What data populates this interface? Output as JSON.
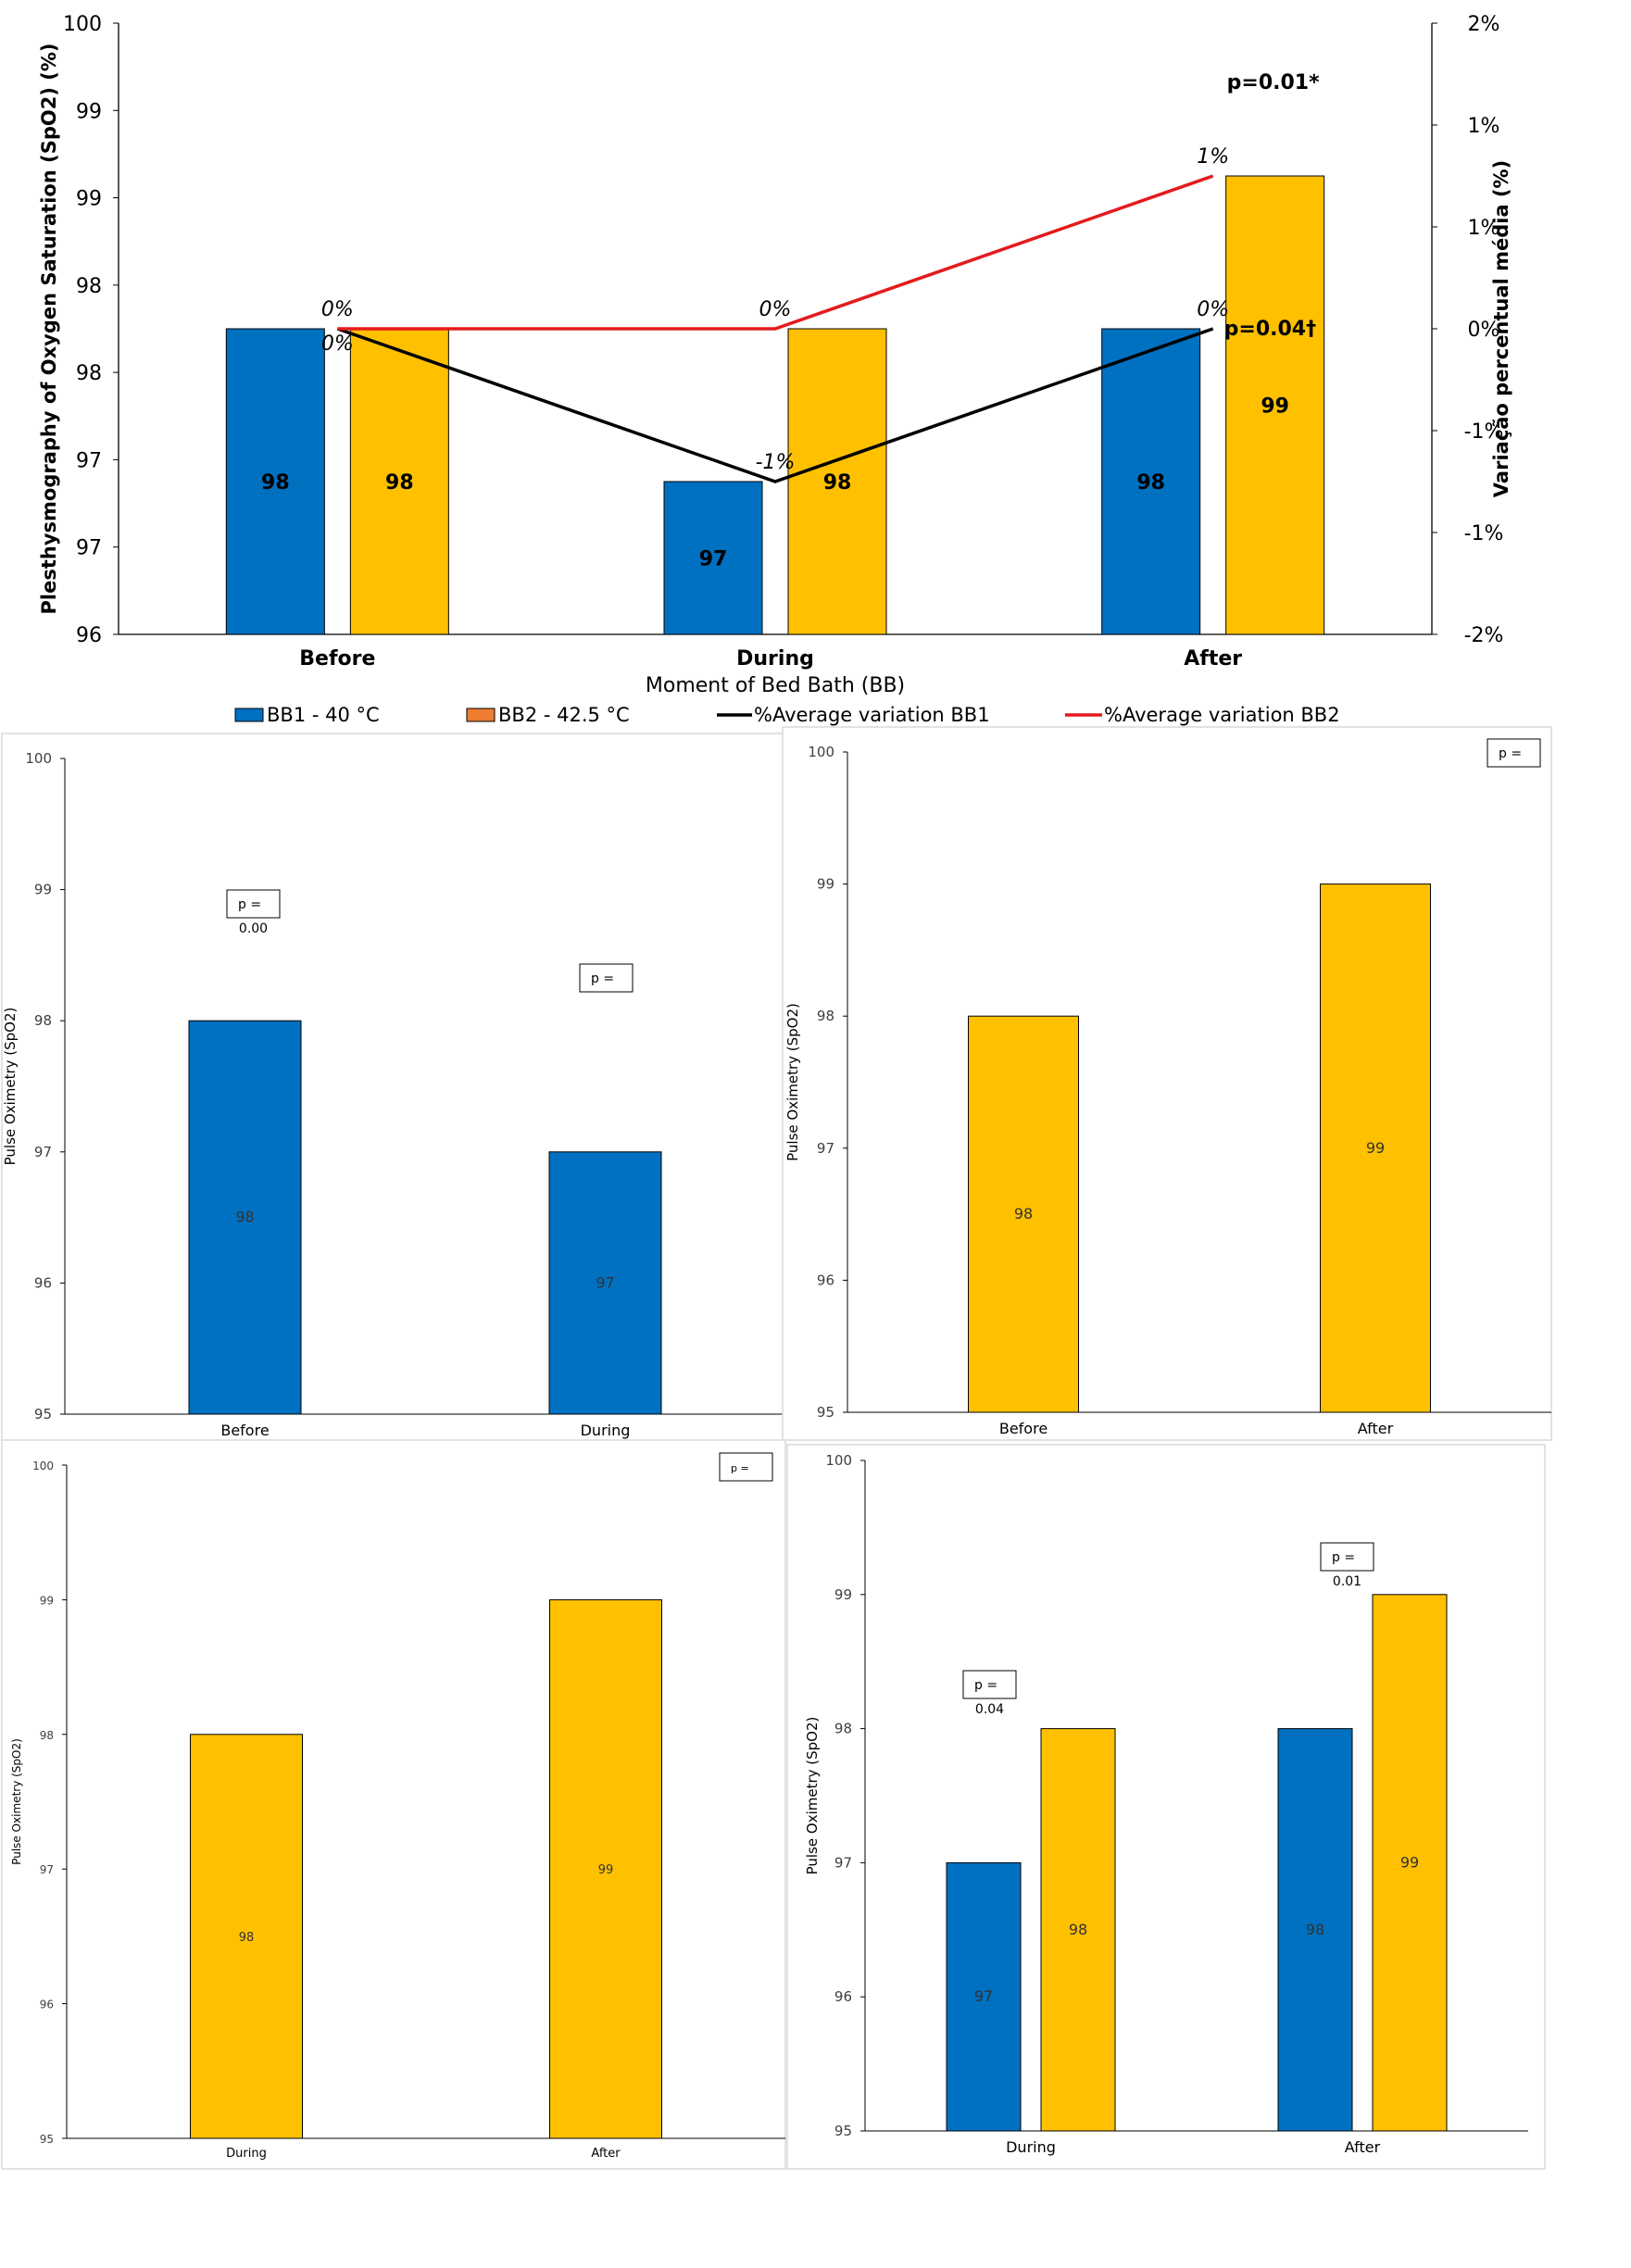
{
  "colors": {
    "bb1": "#0070C0",
    "bb2": "#FFC000",
    "bb2_legend": "#ED7D31",
    "line_bb1": "#000000",
    "line_bb2": "#E41A1C",
    "axis": "#000000",
    "text": "#000000"
  },
  "chart_data": [
    {
      "type": "bar",
      "categories": [
        "Before",
        "During",
        "After"
      ],
      "xlabel": "Moment of Bed Bath (BB)",
      "ylabel": "Plesthysmography of Oxygen Saturation (SpO2) (%)",
      "y2label": "Variação percentual média (%)",
      "ylim": [
        96,
        100
      ],
      "yticks": [
        "96",
        "97",
        "97",
        "98",
        "98",
        "99",
        "99",
        "100"
      ],
      "y2lim": [
        -2,
        2
      ],
      "y2ticks": [
        "-2%",
        "-1%",
        "-1%",
        "0%",
        "1%",
        "1%",
        "2%"
      ],
      "series": [
        {
          "name": "BB1 - 40 °C",
          "kind": "bar",
          "values": [
            98,
            97,
            98
          ],
          "labels": [
            "98",
            "97",
            "98"
          ]
        },
        {
          "name": "BB2 - 42.5 °C",
          "kind": "bar",
          "values": [
            98,
            98,
            99
          ],
          "labels": [
            "98",
            "98",
            "99"
          ]
        },
        {
          "name": "%Average variation BB1",
          "kind": "line",
          "axis": "right",
          "values": [
            0,
            -1,
            0
          ],
          "labels": [
            "0%",
            "-1%",
            "0%"
          ]
        },
        {
          "name": "%Average variation BB2",
          "kind": "line",
          "axis": "right",
          "values": [
            0,
            0,
            1
          ],
          "labels": [
            "0%",
            "0%",
            "1%"
          ]
        }
      ],
      "annotations": [
        "p=0.01*",
        "p=0.04†"
      ],
      "legend": "bottom",
      "grid": false
    },
    {
      "type": "bar",
      "categories": [
        "Before",
        "During"
      ],
      "ylabel": "Pulse Oximetry (SpO2)",
      "ylim": [
        95,
        100
      ],
      "yticks": [
        "95",
        "96",
        "97",
        "98",
        "99",
        "100"
      ],
      "series": [
        {
          "values": [
            98,
            97
          ],
          "labels": [
            "98",
            "97"
          ]
        }
      ],
      "annotations": [
        {
          "text": "p =",
          "value": "0.00"
        },
        {
          "text": "p ="
        }
      ],
      "grid": false
    },
    {
      "type": "bar",
      "categories": [
        "Before",
        "After"
      ],
      "ylabel": "Pulse Oximetry (SpO2)",
      "ylim": [
        95,
        100
      ],
      "yticks": [
        "95",
        "96",
        "97",
        "98",
        "99",
        "100"
      ],
      "series": [
        {
          "values": [
            98,
            99
          ],
          "labels": [
            "98",
            "99"
          ]
        }
      ],
      "annotations": [
        {
          "text": "p ="
        }
      ],
      "grid": false
    },
    {
      "type": "bar",
      "categories": [
        "During",
        "After"
      ],
      "ylabel": "Pulse Oximetry (SpO2)",
      "ylim": [
        95,
        100
      ],
      "yticks": [
        "95",
        "96",
        "97",
        "98",
        "99",
        "100"
      ],
      "series": [
        {
          "values": [
            98,
            99
          ],
          "labels": [
            "98",
            "99"
          ]
        }
      ],
      "annotations": [
        {
          "text": "p ="
        }
      ],
      "grid": false
    },
    {
      "type": "bar",
      "categories": [
        "During",
        "After"
      ],
      "ylabel": "Pulse Oximetry (SpO2)",
      "ylim": [
        95,
        100
      ],
      "yticks": [
        "95",
        "96",
        "97",
        "98",
        "99",
        "100"
      ],
      "series": [
        {
          "values": [
            97,
            98
          ],
          "labels": [
            "97",
            "98"
          ]
        },
        {
          "values": [
            98,
            99
          ],
          "labels": [
            "98",
            "99"
          ]
        }
      ],
      "annotations": [
        {
          "text": "p =",
          "value": "0.04"
        },
        {
          "text": "p =",
          "value": "0.01"
        }
      ],
      "grid": false
    }
  ]
}
